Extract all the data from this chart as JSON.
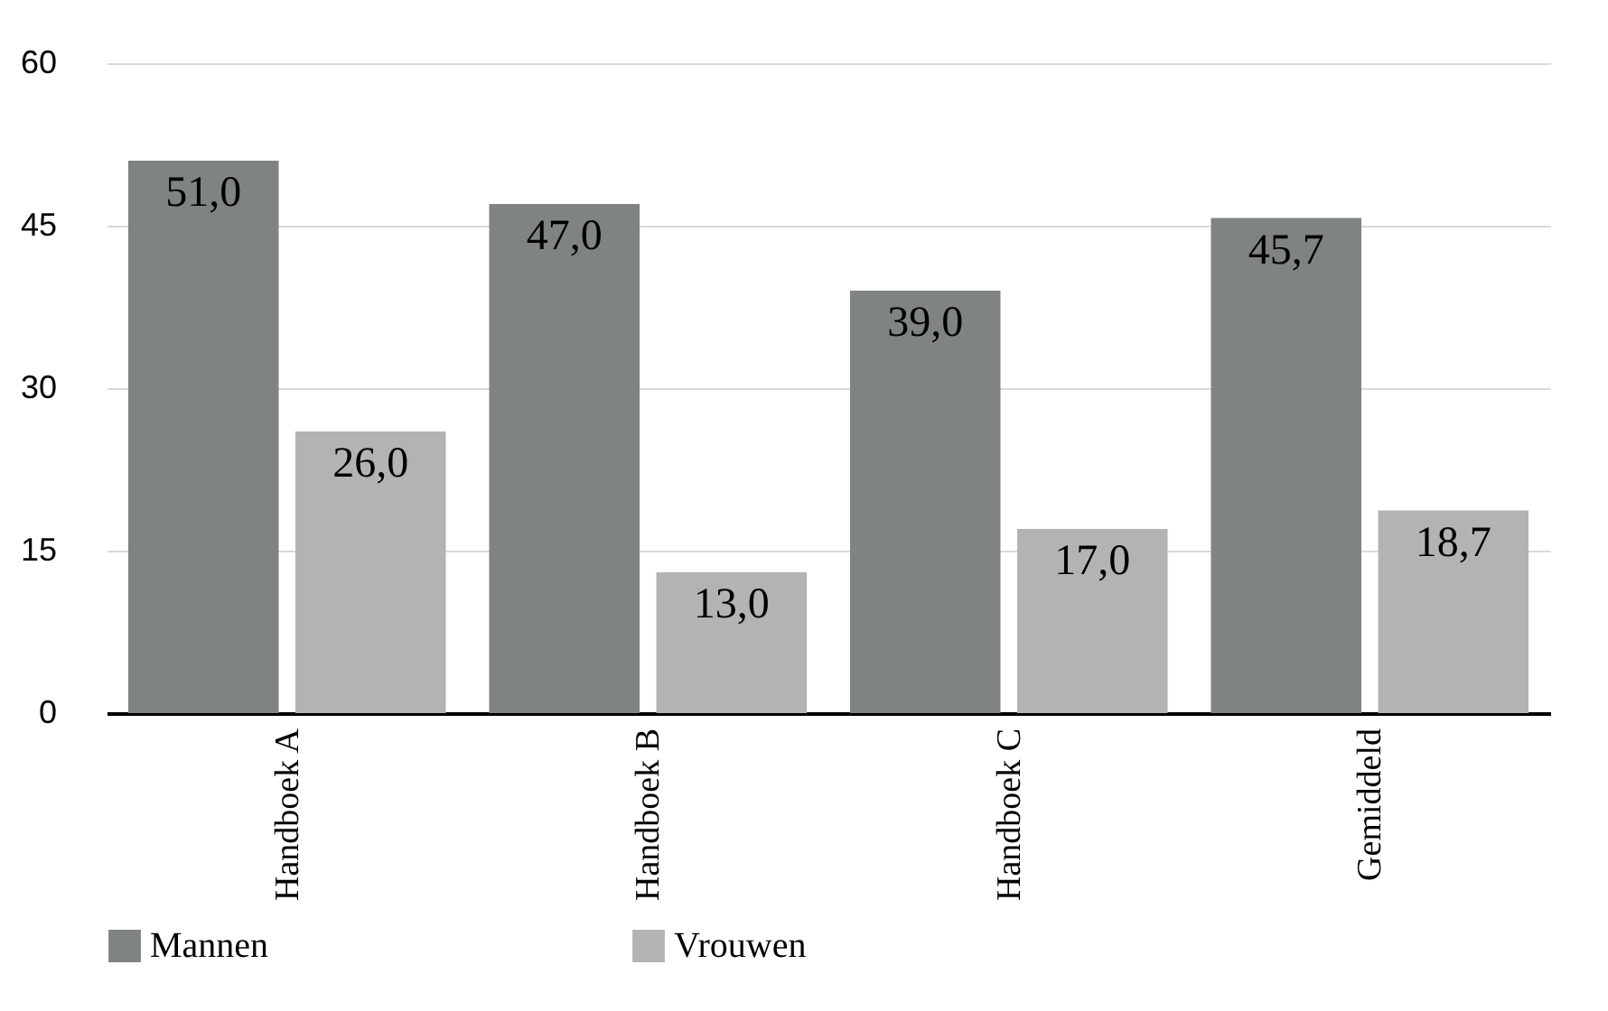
{
  "chart_data": {
    "type": "bar",
    "categories": [
      "Handboek A",
      "Handboek B",
      "Handboek C",
      "Gemiddeld"
    ],
    "series": [
      {
        "name": "Mannen",
        "color": "#7f8480",
        "values": [
          51,
          47,
          39,
          45.7
        ],
        "value_labels": [
          "51,0",
          "47,0",
          "39,0",
          "45,7"
        ]
      },
      {
        "name": "Vrouwen",
        "color": "#b3b3b3",
        "values": [
          26,
          13,
          17,
          18.7
        ],
        "value_labels": [
          "26,0",
          "13,0",
          "17,0",
          "18,7"
        ]
      }
    ],
    "ylim": [
      0,
      60
    ],
    "yticks": [
      0,
      15,
      30,
      45,
      60
    ],
    "grid": "y",
    "legend": "bottom"
  }
}
